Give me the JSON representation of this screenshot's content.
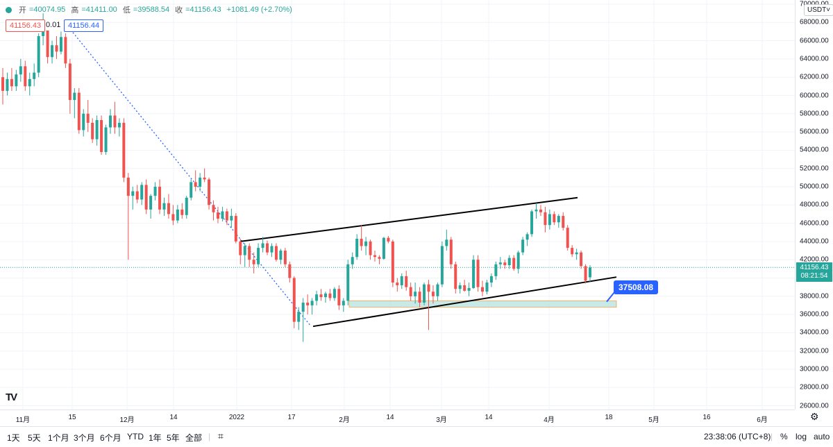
{
  "legend": {
    "open_label": "开",
    "open_value": "=40074.95",
    "high_label": "高",
    "high_value": "=41411.00",
    "low_label": "低",
    "low_value": "=39588.54",
    "close_label": "收",
    "close_value": "=41156.43",
    "change_value": "+1081.49 (+2.70%)"
  },
  "order_tags": {
    "sell": "41156.43",
    "spread": "0.01",
    "buy": "41156.44"
  },
  "currency_selector": "USDT˅",
  "current_price": "41156.43",
  "countdown": "08:21:54",
  "callout_price": "37508.08",
  "colors": {
    "up": "#26a69a",
    "down": "#ef5350",
    "accent": "#2962ff",
    "zone": "#b2dfdb"
  },
  "chart_data": {
    "type": "candlestick",
    "y_axis_ticks": [
      "70000.00",
      "68000.00",
      "66000.00",
      "64000.00",
      "62000.00",
      "60000.00",
      "58000.00",
      "56000.00",
      "54000.00",
      "52000.00",
      "50000.00",
      "48000.00",
      "46000.00",
      "44000.00",
      "42000.00",
      "40000.00",
      "38000.00",
      "36000.00",
      "34000.00",
      "32000.00",
      "30000.00",
      "28000.00",
      "26000.00"
    ],
    "x_axis_ticks": [
      "11月",
      "15",
      "12月",
      "14",
      "2022",
      "17",
      "2月",
      "14",
      "3月",
      "14",
      "4月",
      "18",
      "5月",
      "16",
      "6月"
    ],
    "ylim": [
      25000,
      71000
    ],
    "candles": [
      [
        62000,
        63000,
        59000,
        60500
      ],
      [
        60500,
        62500,
        60000,
        61800
      ],
      [
        61800,
        63000,
        60500,
        61000
      ],
      [
        61000,
        62800,
        60500,
        62300
      ],
      [
        62300,
        64000,
        61500,
        63200
      ],
      [
        63200,
        63800,
        60500,
        61000
      ],
      [
        61000,
        62500,
        60000,
        61800
      ],
      [
        61800,
        63500,
        61000,
        62500
      ],
      [
        62500,
        66800,
        62000,
        66500
      ],
      [
        66500,
        69000,
        65500,
        67200
      ],
      [
        67200,
        67800,
        63500,
        64200
      ],
      [
        64200,
        66000,
        63500,
        65500
      ],
      [
        65500,
        66500,
        64000,
        64800
      ],
      [
        64800,
        67000,
        64500,
        66400
      ],
      [
        66400,
        66800,
        63000,
        63500
      ],
      [
        63500,
        64000,
        58000,
        59500
      ],
      [
        59500,
        60800,
        57500,
        60300
      ],
      [
        60300,
        60800,
        55800,
        56200
      ],
      [
        56200,
        58500,
        55500,
        58000
      ],
      [
        58000,
        59500,
        56000,
        57000
      ],
      [
        57000,
        57500,
        54800,
        55200
      ],
      [
        55200,
        57800,
        54500,
        57300
      ],
      [
        57300,
        57800,
        53500,
        53800
      ],
      [
        53800,
        56800,
        53500,
        56500
      ],
      [
        56500,
        58500,
        55800,
        57800
      ],
      [
        57800,
        59300,
        55800,
        56500
      ],
      [
        56500,
        57500,
        55500,
        57000
      ],
      [
        57000,
        57500,
        50500,
        51000
      ],
      [
        51000,
        51500,
        42000,
        49000
      ],
      [
        49000,
        50000,
        47500,
        49500
      ],
      [
        49500,
        50200,
        48200,
        48600
      ],
      [
        48600,
        50500,
        48000,
        50200
      ],
      [
        50200,
        50800,
        47000,
        47500
      ],
      [
        47500,
        49200,
        46500,
        49000
      ],
      [
        49000,
        50500,
        48500,
        50000
      ],
      [
        50000,
        50800,
        47000,
        47500
      ],
      [
        47500,
        48800,
        46800,
        48200
      ],
      [
        48200,
        49200,
        46500,
        47000
      ],
      [
        47000,
        48000,
        45800,
        46300
      ],
      [
        46300,
        48000,
        46000,
        47500
      ],
      [
        47500,
        48200,
        46500,
        46900
      ],
      [
        46900,
        49000,
        46500,
        48800
      ],
      [
        48800,
        50800,
        48500,
        50500
      ],
      [
        50500,
        51800,
        49500,
        50000
      ],
      [
        50000,
        51500,
        49500,
        51000
      ],
      [
        51000,
        52000,
        50500,
        50800
      ],
      [
        50800,
        51000,
        47500,
        48000
      ],
      [
        48000,
        48500,
        46300,
        47200
      ],
      [
        47200,
        47800,
        46000,
        46500
      ],
      [
        46500,
        47800,
        46200,
        47300
      ],
      [
        47300,
        47600,
        45800,
        46300
      ],
      [
        46300,
        47600,
        45500,
        46800
      ],
      [
        46800,
        47100,
        43800,
        44000
      ],
      [
        44000,
        44300,
        41500,
        42500
      ],
      [
        42500,
        43800,
        41200,
        43500
      ],
      [
        43500,
        43800,
        41200,
        42000
      ],
      [
        42000,
        42800,
        40500,
        41500
      ],
      [
        41500,
        43800,
        41200,
        43300
      ],
      [
        43300,
        44500,
        42800,
        43800
      ],
      [
        43800,
        44100,
        42500,
        42800
      ],
      [
        42800,
        43800,
        42300,
        43500
      ],
      [
        43500,
        43800,
        41800,
        42000
      ],
      [
        42000,
        43200,
        41500,
        43000
      ],
      [
        43000,
        43300,
        41200,
        41500
      ],
      [
        41500,
        41800,
        39500,
        40000
      ],
      [
        40000,
        40200,
        34500,
        35200
      ],
      [
        35200,
        36800,
        34300,
        36300
      ],
      [
        36300,
        37800,
        33000,
        37300
      ],
      [
        37300,
        38200,
        36000,
        37000
      ],
      [
        37000,
        37800,
        36000,
        37500
      ],
      [
        37500,
        38600,
        37000,
        38200
      ],
      [
        38200,
        38800,
        37500,
        37900
      ],
      [
        37900,
        38500,
        37300,
        38300
      ],
      [
        38300,
        38800,
        37500,
        37800
      ],
      [
        37800,
        39000,
        37500,
        38800
      ],
      [
        38800,
        39200,
        36500,
        37000
      ],
      [
        37000,
        37800,
        36300,
        37500
      ],
      [
        37500,
        42000,
        37000,
        41500
      ],
      [
        41500,
        42800,
        41000,
        42300
      ],
      [
        42300,
        44800,
        42000,
        44300
      ],
      [
        44300,
        45800,
        43000,
        43500
      ],
      [
        43500,
        44500,
        42500,
        44000
      ],
      [
        44000,
        44200,
        42000,
        42500
      ],
      [
        42500,
        43000,
        41800,
        42300
      ],
      [
        42300,
        42500,
        41500,
        42100
      ],
      [
        42100,
        44500,
        42000,
        44400
      ],
      [
        44400,
        44600,
        43800,
        44000
      ],
      [
        44000,
        44200,
        39000,
        39500
      ],
      [
        39500,
        40000,
        38500,
        39200
      ],
      [
        39200,
        40500,
        38800,
        40200
      ],
      [
        40200,
        40800,
        38600,
        39000
      ],
      [
        39000,
        39500,
        37500,
        38000
      ],
      [
        38000,
        39500,
        37200,
        38500
      ],
      [
        38500,
        39000,
        36800,
        37300
      ],
      [
        37300,
        39500,
        37000,
        39300
      ],
      [
        39300,
        39800,
        34300,
        38500
      ],
      [
        38500,
        39200,
        37200,
        38000
      ],
      [
        38000,
        39500,
        37500,
        39300
      ],
      [
        39300,
        44000,
        39000,
        43500
      ],
      [
        43500,
        45300,
        43000,
        44200
      ],
      [
        44200,
        44500,
        41000,
        41500
      ],
      [
        41500,
        41800,
        38300,
        38800
      ],
      [
        38800,
        39500,
        38300,
        39200
      ],
      [
        39200,
        39800,
        38500,
        38600
      ],
      [
        38600,
        39500,
        38000,
        38900
      ],
      [
        38900,
        42500,
        38800,
        42000
      ],
      [
        42000,
        42500,
        38500,
        39000
      ],
      [
        39000,
        39700,
        38000,
        38500
      ],
      [
        38500,
        39800,
        38200,
        39500
      ],
      [
        39500,
        40500,
        39000,
        40200
      ],
      [
        40200,
        41800,
        39800,
        41500
      ],
      [
        41500,
        42300,
        41000,
        41700
      ],
      [
        41700,
        42000,
        41000,
        41400
      ],
      [
        41400,
        42500,
        41000,
        42200
      ],
      [
        42200,
        42500,
        40800,
        41000
      ],
      [
        41000,
        43000,
        40500,
        42800
      ],
      [
        42800,
        44500,
        42500,
        44200
      ],
      [
        44200,
        45000,
        43500,
        44800
      ],
      [
        44800,
        47500,
        44500,
        47300
      ],
      [
        47300,
        48200,
        46500,
        47500
      ],
      [
        47500,
        48000,
        46800,
        47200
      ],
      [
        47200,
        47800,
        45000,
        45800
      ],
      [
        45800,
        47500,
        45300,
        47000
      ],
      [
        47000,
        47300,
        45800,
        46100
      ],
      [
        46100,
        47000,
        45500,
        46800
      ],
      [
        46800,
        47200,
        45200,
        45500
      ],
      [
        45500,
        45800,
        43000,
        43300
      ],
      [
        43300,
        43600,
        42300,
        42600
      ],
      [
        42600,
        43200,
        42000,
        42800
      ],
      [
        42800,
        43000,
        41000,
        41300
      ],
      [
        41300,
        41500,
        39400,
        39700
      ],
      [
        40075,
        41411,
        39589,
        41156
      ]
    ],
    "x_index_range": [
      0,
      191
    ]
  },
  "bottom_bar": {
    "intervals": [
      "1天",
      "5天",
      "1个月",
      "3个月",
      "6个月",
      "YTD",
      "1年",
      "5年",
      "全部"
    ],
    "compare_icon_glyph": "⌗",
    "clock": "23:38:06 (UTC+8)",
    "percent_toggle": "%",
    "log_toggle": "log",
    "auto_toggle": "auto"
  }
}
